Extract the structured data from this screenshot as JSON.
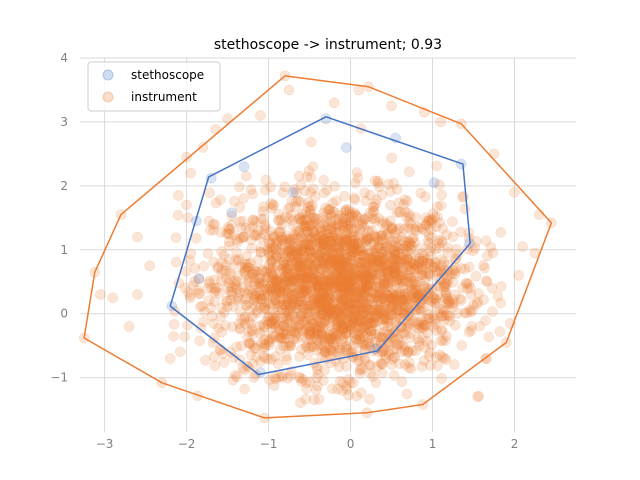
{
  "chart_data": {
    "type": "scatter",
    "title": "stethoscope -> instrument; 0.93",
    "xlabel": "",
    "ylabel": "",
    "xlim": [
      -3.3,
      2.75
    ],
    "ylim": [
      -1.85,
      4.0
    ],
    "xticks": [
      -3,
      -2,
      -1,
      0,
      1,
      2
    ],
    "xtick_labels": [
      "−3",
      "−2",
      "−1",
      "0",
      "1",
      "2"
    ],
    "yticks": [
      -1,
      0,
      1,
      2,
      3,
      4
    ],
    "ytick_labels": [
      "−1",
      "0",
      "1",
      "2",
      "3",
      "4"
    ],
    "grid": true,
    "legend_position": "upper-left",
    "series": [
      {
        "name": "stethoscope",
        "color": "#4472c4",
        "marker": "circle",
        "alpha": 0.2,
        "hull": [
          [
            -0.3,
            3.08
          ],
          [
            1.37,
            2.34
          ],
          [
            1.46,
            1.1
          ],
          [
            0.33,
            -0.58
          ],
          [
            -0.05,
            -0.68
          ],
          [
            -1.12,
            -0.95
          ],
          [
            -2.2,
            0.12
          ],
          [
            -1.73,
            2.14
          ]
        ],
        "points": [
          [
            -0.3,
            3.05
          ],
          [
            1.35,
            2.34
          ],
          [
            1.45,
            1.1
          ],
          [
            0.3,
            -0.55
          ],
          [
            -1.1,
            -0.92
          ],
          [
            -2.18,
            0.12
          ],
          [
            -1.7,
            2.12
          ],
          [
            -1.88,
            1.45
          ],
          [
            -1.85,
            0.55
          ],
          [
            -0.05,
            2.6
          ],
          [
            1.02,
            2.05
          ],
          [
            -1.45,
            1.58
          ],
          [
            -0.7,
            1.9
          ],
          [
            -1.3,
            2.3
          ],
          [
            0.55,
            2.75
          ]
        ]
      },
      {
        "name": "instrument",
        "color": "#ed7d31",
        "marker": "circle",
        "alpha": 0.2,
        "hull": [
          [
            -0.8,
            3.72
          ],
          [
            0.22,
            3.55
          ],
          [
            1.35,
            2.97
          ],
          [
            2.45,
            1.42
          ],
          [
            1.9,
            -0.45
          ],
          [
            0.88,
            -1.42
          ],
          [
            0.2,
            -1.55
          ],
          [
            -1.05,
            -1.63
          ],
          [
            -2.3,
            -1.08
          ],
          [
            -3.25,
            -0.38
          ],
          [
            -3.12,
            0.65
          ],
          [
            -2.8,
            1.55
          ]
        ],
        "points": [
          [
            -0.8,
            3.72
          ],
          [
            0.22,
            3.55
          ],
          [
            1.35,
            2.97
          ],
          [
            2.45,
            1.42
          ],
          [
            1.9,
            -0.45
          ],
          [
            0.88,
            -1.42
          ],
          [
            0.2,
            -1.55
          ],
          [
            -1.05,
            -1.63
          ],
          [
            -2.3,
            -1.08
          ],
          [
            -3.25,
            -0.38
          ],
          [
            -3.12,
            0.65
          ],
          [
            -2.8,
            1.55
          ],
          [
            -0.75,
            3.5
          ],
          [
            -0.2,
            3.3
          ],
          [
            0.5,
            3.25
          ],
          [
            -1.5,
            3.05
          ],
          [
            0.9,
            3.15
          ],
          [
            1.75,
            2.5
          ],
          [
            2.0,
            1.9
          ],
          [
            2.3,
            1.55
          ],
          [
            2.1,
            1.05
          ],
          [
            2.05,
            0.6
          ],
          [
            -2.6,
            1.2
          ],
          [
            -2.9,
            0.25
          ],
          [
            -3.05,
            0.3
          ],
          [
            -2.7,
            -0.2
          ],
          [
            -2.45,
            0.75
          ],
          [
            -2.0,
            2.45
          ],
          [
            -2.1,
            1.85
          ],
          [
            -1.1,
            3.1
          ],
          [
            1.1,
            3.0
          ],
          [
            0.1,
            3.5
          ],
          [
            -1.8,
            2.6
          ],
          [
            2.25,
            0.95
          ],
          [
            1.95,
            -0.15
          ],
          [
            -2.2,
            -0.7
          ],
          [
            -2.6,
            0.3
          ],
          [
            -1.95,
            2.2
          ]
        ]
      }
    ],
    "dense_cloud": {
      "series": "instrument",
      "center": [
        -0.15,
        0.45
      ],
      "spread": [
        0.72,
        0.65
      ],
      "x_range": [
        -2.2,
        1.9
      ],
      "y_range": [
        -1.45,
        3.3
      ]
    }
  }
}
